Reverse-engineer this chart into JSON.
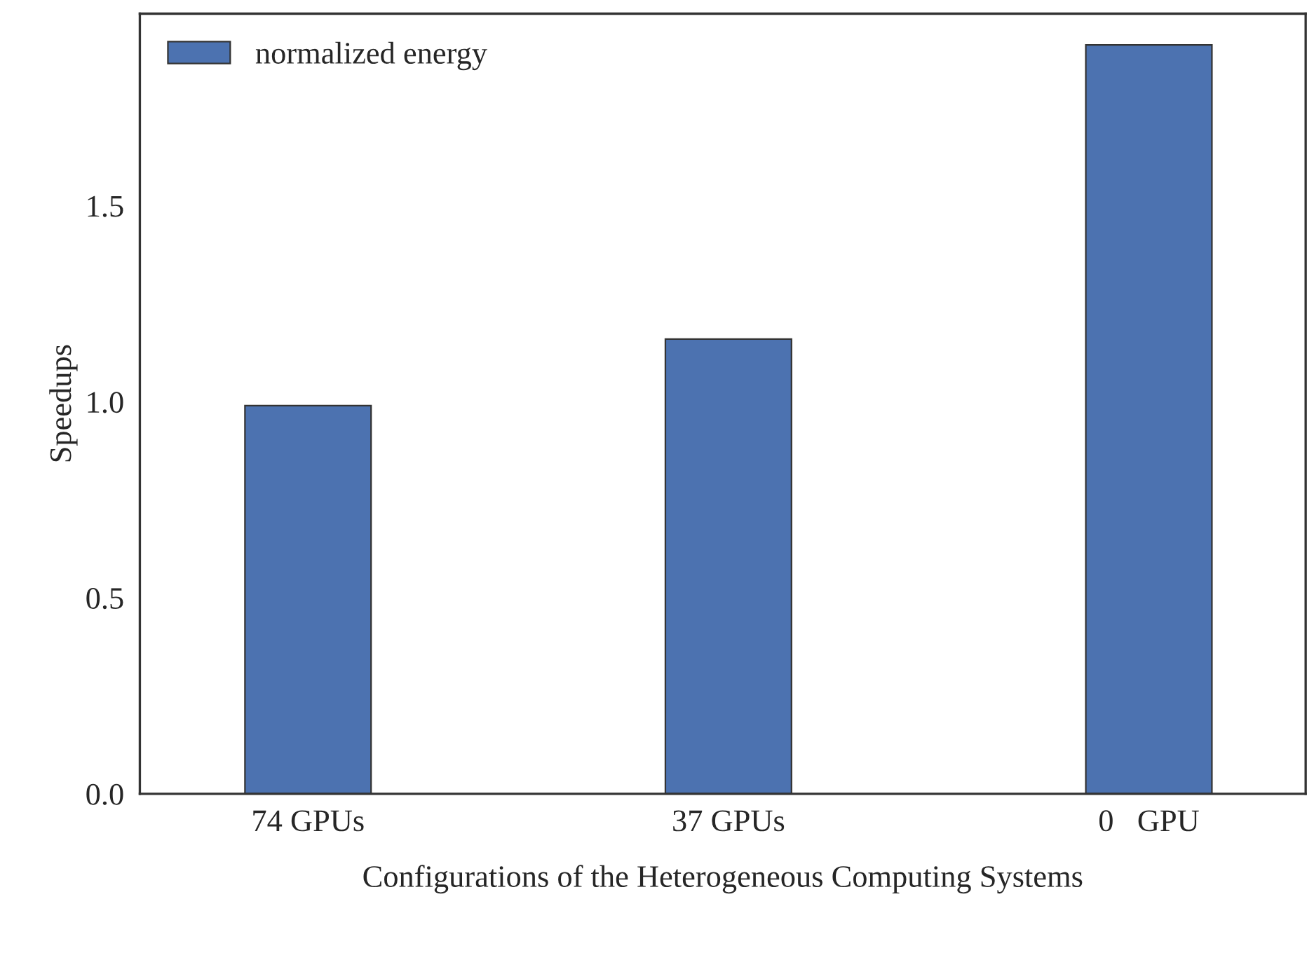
{
  "chart_data": {
    "type": "bar",
    "xlabel": "Configurations of the Heterogeneous Computing Systems",
    "ylabel": "Speedups",
    "categories": [
      "74 GPUs",
      "37 GPUs",
      "0   GPU"
    ],
    "series": [
      {
        "name": "normalized energy",
        "color": "#4c72b0",
        "values": [
          0.99,
          1.16,
          1.91
        ]
      }
    ],
    "ylim": [
      0,
      1.99
    ],
    "yticks": [
      {
        "value": 0,
        "label": "0.0"
      },
      0.5,
      {
        "value": 1,
        "label": "1.0"
      },
      1.5
    ],
    "grid": false,
    "legend": "top left"
  }
}
